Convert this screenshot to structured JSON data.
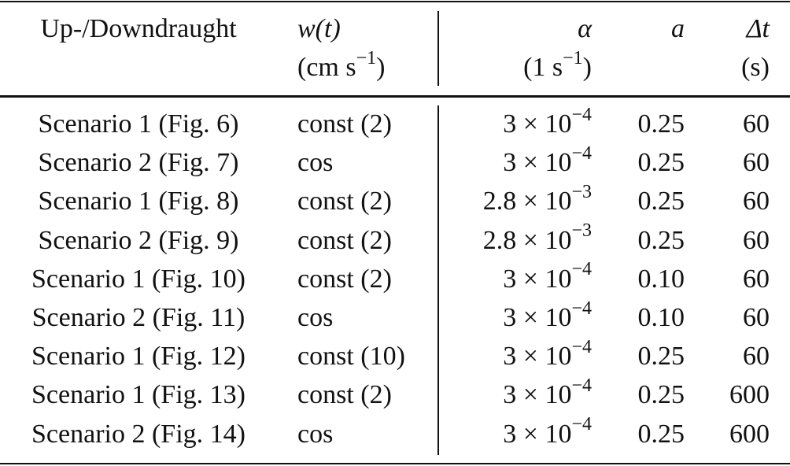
{
  "table": {
    "header": {
      "labels": [
        "Up-/Downdraught",
        "w(t)",
        "α",
        "a",
        "Δt"
      ],
      "units": {
        "w": {
          "pre": "(cm s",
          "exp": "−1",
          "post": ")"
        },
        "alpha": {
          "pre": "(1 s",
          "exp": "−1",
          "post": ")"
        },
        "dt": "(s)"
      }
    },
    "rows": [
      {
        "scenario": "Scenario 1 (Fig. 6)",
        "w": "const (2)",
        "alpha": {
          "base": "3 × 10",
          "exp": "−4"
        },
        "a": "0.25",
        "dt": "60"
      },
      {
        "scenario": "Scenario 2 (Fig. 7)",
        "w": "cos",
        "alpha": {
          "base": "3 × 10",
          "exp": "−4"
        },
        "a": "0.25",
        "dt": "60"
      },
      {
        "scenario": "Scenario 1 (Fig. 8)",
        "w": "const (2)",
        "alpha": {
          "base": "2.8 × 10",
          "exp": "−3"
        },
        "a": "0.25",
        "dt": "60"
      },
      {
        "scenario": "Scenario 2 (Fig. 9)",
        "w": "const (2)",
        "alpha": {
          "base": "2.8 × 10",
          "exp": "−3"
        },
        "a": "0.25",
        "dt": "60"
      },
      {
        "scenario": "Scenario 1 (Fig. 10)",
        "w": "const (2)",
        "alpha": {
          "base": "3 × 10",
          "exp": "−4"
        },
        "a": "0.10",
        "dt": "60"
      },
      {
        "scenario": "Scenario 2 (Fig. 11)",
        "w": "cos",
        "alpha": {
          "base": "3 × 10",
          "exp": "−4"
        },
        "a": "0.10",
        "dt": "60"
      },
      {
        "scenario": "Scenario 1 (Fig. 12)",
        "w": "const (10)",
        "alpha": {
          "base": "3 × 10",
          "exp": "−4"
        },
        "a": "0.25",
        "dt": "60"
      },
      {
        "scenario": "Scenario 1 (Fig. 13)",
        "w": "const (2)",
        "alpha": {
          "base": "3 × 10",
          "exp": "−4"
        },
        "a": "0.25",
        "dt": "600"
      },
      {
        "scenario": "Scenario 2 (Fig. 14)",
        "w": "cos",
        "alpha": {
          "base": "3 × 10",
          "exp": "−4"
        },
        "a": "0.25",
        "dt": "600"
      }
    ]
  }
}
